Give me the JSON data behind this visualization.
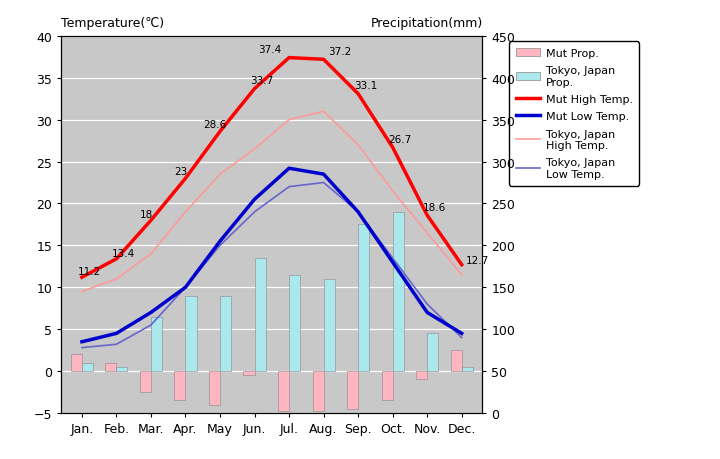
{
  "months": [
    "Jan.",
    "Feb.",
    "Mar.",
    "Apr.",
    "May",
    "Jun.",
    "Jul.",
    "Aug.",
    "Sep.",
    "Oct.",
    "Nov.",
    "Dec."
  ],
  "mut_high_temp": [
    11.2,
    13.4,
    18.0,
    23.0,
    28.6,
    33.7,
    37.4,
    37.2,
    33.1,
    26.7,
    18.6,
    12.7
  ],
  "mut_low_temp": [
    3.5,
    4.5,
    7.0,
    10.0,
    15.5,
    20.5,
    24.2,
    23.5,
    19.0,
    13.0,
    7.0,
    4.5
  ],
  "tokyo_high_temp": [
    9.5,
    11.0,
    14.0,
    19.0,
    23.5,
    26.5,
    30.0,
    31.0,
    27.0,
    21.5,
    16.5,
    11.5
  ],
  "tokyo_low_temp": [
    2.8,
    3.2,
    5.5,
    10.0,
    15.0,
    19.0,
    22.0,
    22.5,
    19.0,
    13.5,
    8.0,
    4.0
  ],
  "mut_precip": [
    2.0,
    1.0,
    -2.5,
    -3.5,
    -4.0,
    -0.5,
    -4.8,
    -4.8,
    -4.5,
    -3.5,
    -1.0,
    2.5
  ],
  "tokyo_precip": [
    1.0,
    0.5,
    6.5,
    9.0,
    9.0,
    13.5,
    11.5,
    11.0,
    17.5,
    19.0,
    4.5,
    0.5
  ],
  "background_color": "#c8c8c8",
  "mut_high_color": "#ff0000",
  "mut_low_color": "#0000cc",
  "tokyo_high_color": "#ff9999",
  "tokyo_low_color": "#6666cc",
  "mut_precip_color": "#ffb6c1",
  "tokyo_precip_color": "#aae8ee",
  "title_left": "Temperature(℃)",
  "title_right": "Precipitation(mm)",
  "ylim_left": [
    -5,
    40
  ],
  "ylim_right": [
    0,
    450
  ],
  "yticks_left": [
    -5,
    0,
    5,
    10,
    15,
    20,
    25,
    30,
    35,
    40
  ],
  "yticks_right": [
    0,
    50,
    100,
    150,
    200,
    250,
    300,
    350,
    400,
    450
  ],
  "mut_high_labels": [
    [
      0,
      11.2,
      "11.2",
      -3,
      2
    ],
    [
      1,
      13.4,
      "13.4",
      -3,
      2
    ],
    [
      2,
      18.0,
      "18",
      -8,
      2
    ],
    [
      3,
      23.0,
      "23",
      -8,
      3
    ],
    [
      4,
      28.6,
      "28.6",
      -12,
      3
    ],
    [
      5,
      33.7,
      "33.7",
      -3,
      4
    ],
    [
      6,
      37.4,
      "37.4",
      -22,
      4
    ],
    [
      7,
      37.2,
      "37.2",
      3,
      4
    ],
    [
      8,
      33.1,
      "33.1",
      -3,
      4
    ],
    [
      9,
      26.7,
      "26.7",
      -3,
      4
    ],
    [
      10,
      18.6,
      "18.6",
      -3,
      4
    ],
    [
      11,
      12.7,
      "12.7",
      3,
      1
    ]
  ],
  "legend_labels": [
    "Mut Prop.",
    "Tokyo, Japan\nProp.",
    "Mut High Temp.",
    "Mut Low Temp.",
    "Tokyo, Japan\nHigh Temp.",
    "Tokyo, Japan\nLow Temp."
  ]
}
